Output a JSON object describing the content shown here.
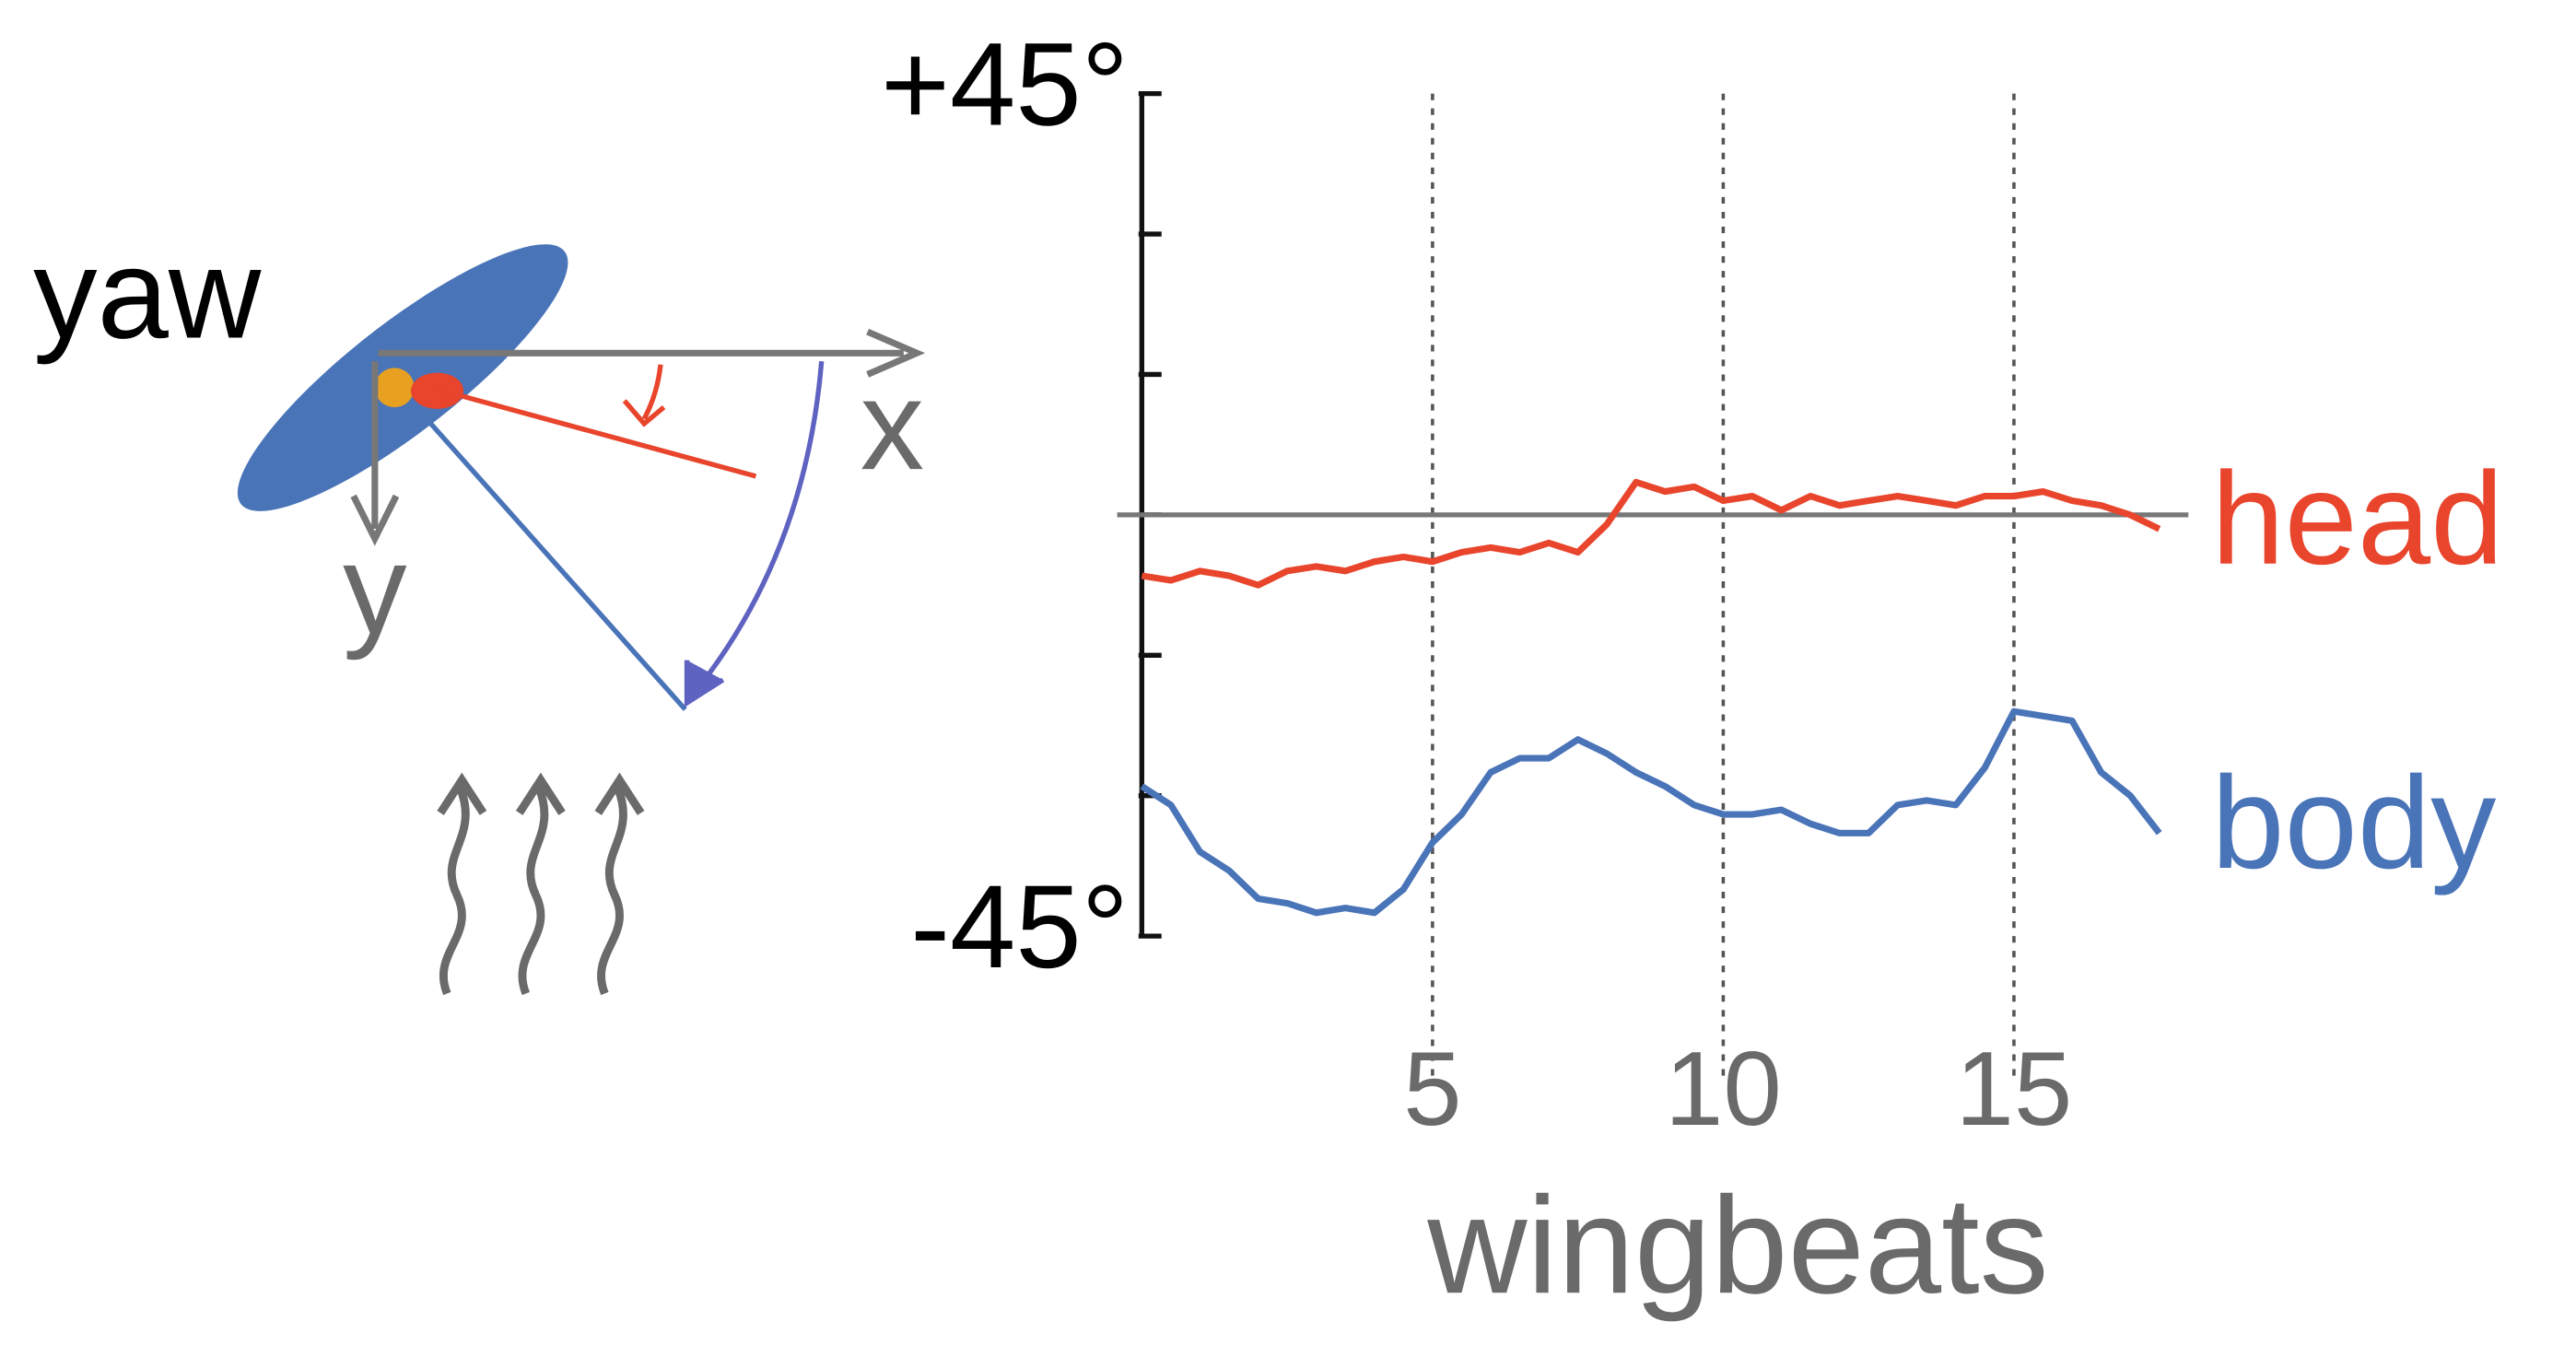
{
  "diagram": {
    "rotation_label": "yaw",
    "x_axis_label": "x",
    "y_axis_label": "y"
  },
  "chart_data": {
    "type": "line",
    "xlabel": "wingbeats",
    "x": [
      0,
      0.5,
      1,
      1.5,
      2,
      2.5,
      3,
      3.5,
      4,
      4.5,
      5,
      5.5,
      6,
      6.5,
      7,
      7.5,
      8,
      8.5,
      9,
      9.5,
      10,
      10.5,
      11,
      11.5,
      12,
      12.5,
      13,
      13.5,
      14,
      14.5,
      15,
      15.5,
      16,
      16.5,
      17,
      17.5
    ],
    "series": [
      {
        "name": "head",
        "color": "#e8452c",
        "values": [
          -6.5,
          -7,
          -6,
          -6.5,
          -7.5,
          -6,
          -5.5,
          -6,
          -5,
          -4.5,
          -5,
          -4,
          -3.5,
          -4,
          -3,
          -4,
          -1,
          3.5,
          2.5,
          3,
          1.5,
          2,
          0.5,
          2,
          1,
          1.5,
          2,
          1.5,
          1,
          2,
          2,
          2.5,
          1.5,
          1,
          0,
          -1.5
        ]
      },
      {
        "name": "body",
        "color": "#4a74b8",
        "values": [
          -29,
          -31,
          -36,
          -38,
          -41,
          -41.5,
          -42.5,
          -42,
          -42.5,
          -40,
          -35,
          -32,
          -27.5,
          -26,
          -26,
          -24,
          -25.5,
          -27.5,
          -29,
          -31,
          -32,
          -32,
          -31.5,
          -33,
          -34,
          -34,
          -31,
          -30.5,
          -31,
          -27,
          -21,
          -21.5,
          -22,
          -27.5,
          -30,
          -34
        ]
      }
    ],
    "xlim": [
      0,
      18
    ],
    "xticks": [
      5,
      10,
      15
    ],
    "ylim": [
      -45,
      45
    ],
    "yticks": [
      {
        "value": 45,
        "label": "+45°"
      },
      {
        "value": -45,
        "label": "-45°"
      }
    ],
    "yminorticks": [
      30,
      15,
      0,
      -15,
      -30
    ],
    "reference_line": 0
  }
}
